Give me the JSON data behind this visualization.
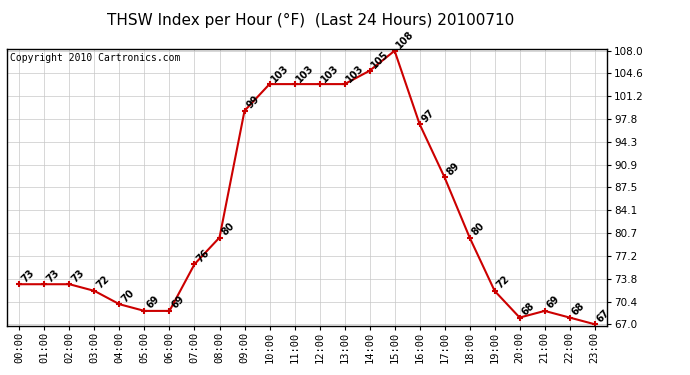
{
  "title": "THSW Index per Hour (°F)  (Last 24 Hours) 20100710",
  "copyright": "Copyright 2010 Cartronics.com",
  "hours": [
    0,
    1,
    2,
    3,
    4,
    5,
    6,
    7,
    8,
    9,
    10,
    11,
    12,
    13,
    14,
    15,
    16,
    17,
    18,
    19,
    20,
    21,
    22,
    23
  ],
  "values": [
    73,
    73,
    73,
    72,
    70,
    69,
    69,
    76,
    80,
    99,
    103,
    103,
    103,
    103,
    105,
    108,
    97,
    89,
    80,
    72,
    68,
    69,
    68,
    67
  ],
  "x_labels": [
    "00:00",
    "01:00",
    "02:00",
    "03:00",
    "04:00",
    "05:00",
    "06:00",
    "07:00",
    "08:00",
    "09:00",
    "10:00",
    "11:00",
    "12:00",
    "13:00",
    "14:00",
    "15:00",
    "16:00",
    "17:00",
    "18:00",
    "19:00",
    "20:00",
    "21:00",
    "22:00",
    "23:00"
  ],
  "y_ticks": [
    67.0,
    70.4,
    73.8,
    77.2,
    80.7,
    84.1,
    87.5,
    90.9,
    94.3,
    97.8,
    101.2,
    104.6,
    108.0
  ],
  "ylim": [
    67.0,
    108.0
  ],
  "line_color": "#cc0000",
  "marker_color": "#cc0000",
  "bg_color": "#ffffff",
  "grid_color": "#c8c8c8",
  "title_fontsize": 11,
  "copyright_fontsize": 7,
  "label_fontsize": 7,
  "tick_fontsize": 7.5
}
